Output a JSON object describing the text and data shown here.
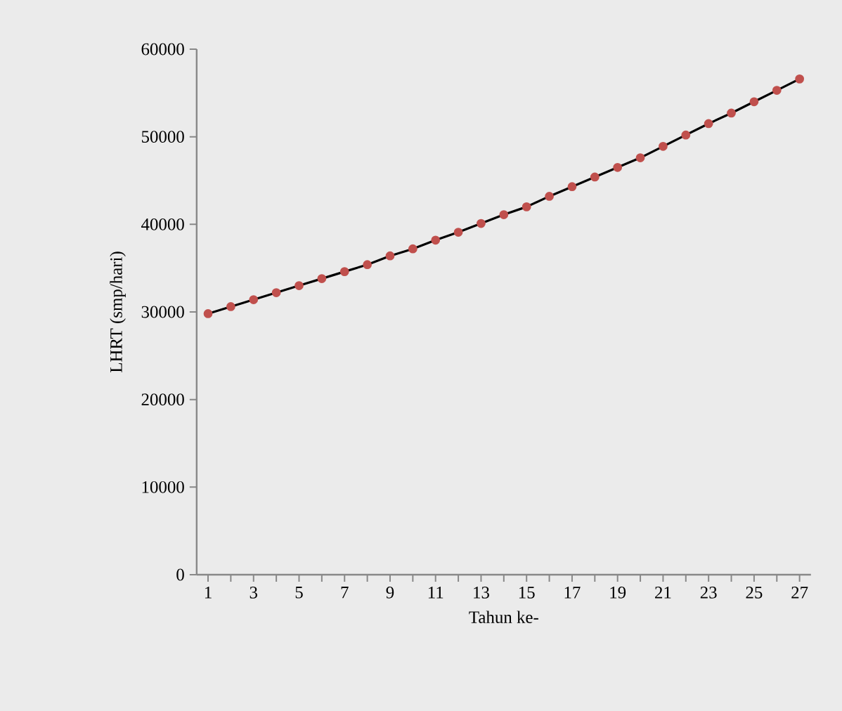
{
  "chart_data": {
    "type": "line",
    "xlabel": "Tahun ke-",
    "ylabel": "LHRT (smp/hari)",
    "categories": [
      "1",
      null,
      "3",
      null,
      "5",
      null,
      "7",
      null,
      "9",
      null,
      "11",
      null,
      "13",
      null,
      "15",
      null,
      "17",
      null,
      "19",
      null,
      "21",
      null,
      "23",
      null,
      "25",
      null,
      "27"
    ],
    "series": [
      {
        "color": "#c0504d",
        "values": [
          29800,
          30600,
          31400,
          32200,
          33000,
          33800,
          34600,
          35400,
          36400,
          37200,
          38200,
          39100,
          40100,
          41100,
          42000,
          43200,
          44300,
          45400,
          46500,
          47600,
          48900,
          50200,
          51500,
          52700,
          54000,
          55300,
          56600
        ]
      }
    ],
    "ylim": [
      0,
      60000
    ],
    "yticks": [
      0,
      10000,
      20000,
      30000,
      40000,
      50000,
      60000
    ],
    "marker": "circle",
    "line_style": "solid"
  }
}
